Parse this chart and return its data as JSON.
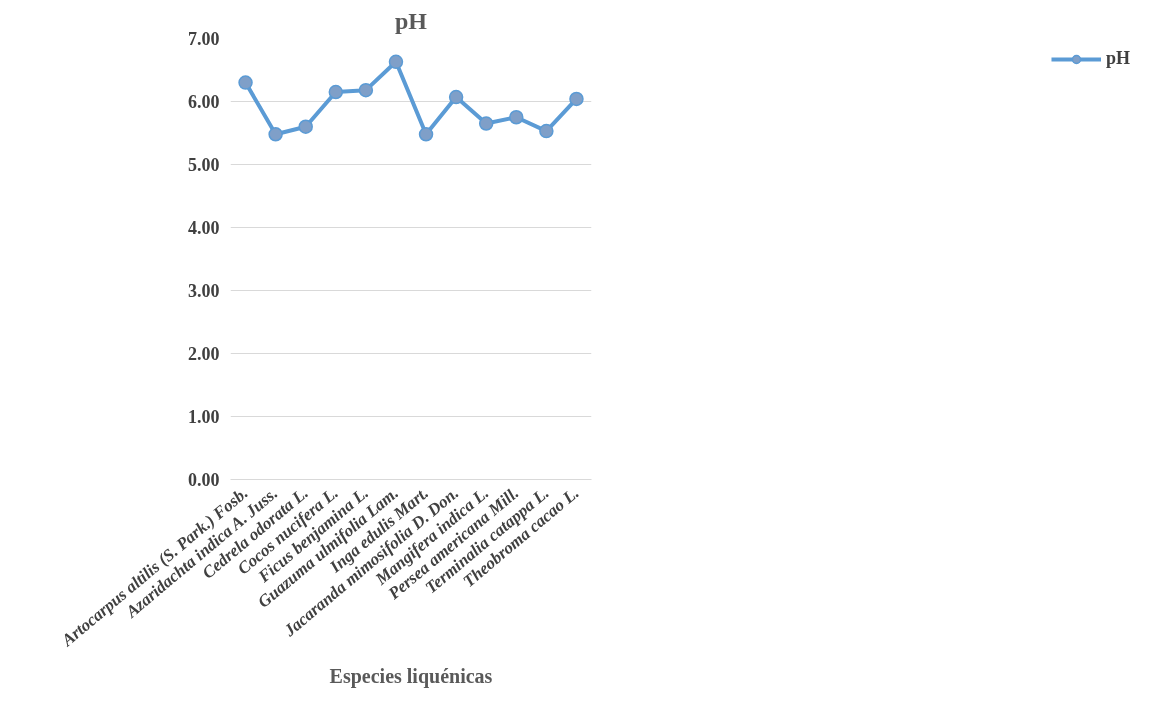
{
  "chart_data": {
    "type": "line",
    "title": "pH",
    "xlabel": "Especies liquénicas",
    "categories": [
      "Artocarpus altilis (S. Park.) Fosb.",
      "Azaridachta indica A. Juss.",
      "Cedrela odorata L.",
      "Cocos nucifera L.",
      "Ficus benjamina L.",
      "Guazuma ulmifolia Lam.",
      "Inga edulis Mart.",
      "Jacaranda mimosifolia D. Don.",
      "Mangifera indica L.",
      "Persea americana Mill.",
      "Terminalia catappa L.",
      "Theobroma cacao L."
    ],
    "series": [
      {
        "name": "pH",
        "color": "#5b9bd5",
        "values": [
          6.3,
          5.48,
          5.6,
          6.15,
          6.18,
          6.63,
          5.48,
          6.07,
          5.65,
          5.75,
          5.53,
          6.04
        ]
      }
    ],
    "ylim": [
      0,
      7
    ],
    "yticks": [
      {
        "value": 0,
        "label": "0.00"
      },
      {
        "value": 1,
        "label": "1.00"
      },
      {
        "value": 2,
        "label": "2.00"
      },
      {
        "value": 3,
        "label": "3.00"
      },
      {
        "value": 4,
        "label": "4.00"
      },
      {
        "value": 5,
        "label": "5.00"
      },
      {
        "value": 6,
        "label": "6.00"
      },
      {
        "value": 7,
        "label": "7.00"
      }
    ],
    "grid": "y",
    "legend": "right",
    "marker": "circle",
    "line_style": "solid"
  }
}
